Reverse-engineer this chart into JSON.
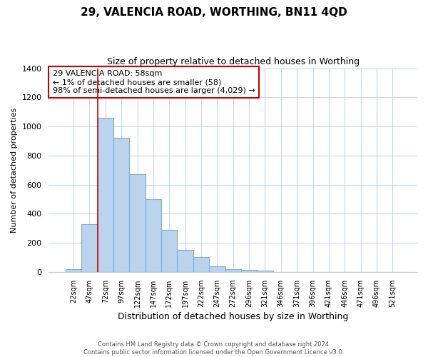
{
  "title1": "29, VALENCIA ROAD, WORTHING, BN11 4QD",
  "title2": "Size of property relative to detached houses in Worthing",
  "xlabel": "Distribution of detached houses by size in Worthing",
  "ylabel": "Number of detached properties",
  "bar_labels": [
    "22sqm",
    "47sqm",
    "72sqm",
    "97sqm",
    "122sqm",
    "147sqm",
    "172sqm",
    "197sqm",
    "222sqm",
    "247sqm",
    "272sqm",
    "296sqm",
    "321sqm",
    "346sqm",
    "371sqm",
    "396sqm",
    "421sqm",
    "446sqm",
    "471sqm",
    "496sqm",
    "521sqm"
  ],
  "bar_values": [
    20,
    330,
    1060,
    920,
    670,
    500,
    290,
    150,
    100,
    40,
    20,
    15,
    10,
    0,
    0,
    0,
    0,
    0,
    0,
    0,
    0
  ],
  "bar_color": "#bad4ed",
  "bar_edge_color": "#7aadd4",
  "vline_color": "#cc0000",
  "ylim": [
    0,
    1400
  ],
  "yticks": [
    0,
    200,
    400,
    600,
    800,
    1000,
    1200,
    1400
  ],
  "annotation_box_text": "29 VALENCIA ROAD: 58sqm\n← 1% of detached houses are smaller (58)\n98% of semi-detached houses are larger (4,029) →",
  "annotation_box_color": "#ffffff",
  "annotation_box_edge_color": "#cc0000",
  "footer_line1": "Contains HM Land Registry data © Crown copyright and database right 2024.",
  "footer_line2": "Contains public sector information licensed under the Open Government Licence v3.0.",
  "background_color": "#ffffff",
  "grid_color": "#c8d8e8"
}
